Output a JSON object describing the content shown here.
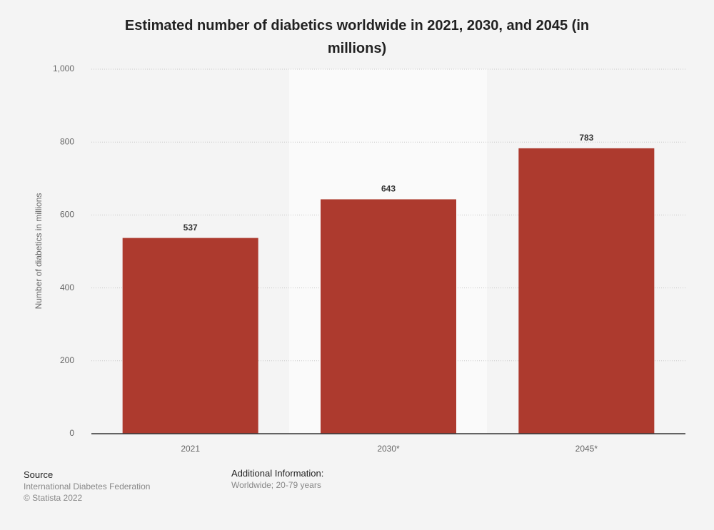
{
  "chart_data": {
    "type": "bar",
    "title": "Estimated number of diabetics worldwide in 2021, 2030, and 2045 (in millions)",
    "y_label": "Number of diabetics in millions",
    "categories": [
      "2021",
      "2030*",
      "2045*"
    ],
    "values": [
      537,
      643,
      783
    ],
    "color": "#ad3a2e",
    "ylim": [
      0,
      1000
    ],
    "yticks": [
      0,
      200,
      400,
      600,
      800,
      {
        "value": 1000,
        "label": "1,000"
      }
    ],
    "grid": true
  },
  "footer": {
    "source_title": "Source",
    "source": "International Diabetes Federation",
    "copyright": "© Statista 2022",
    "info_title": "Additional Information:",
    "info": "Worldwide; 20-79 years"
  }
}
